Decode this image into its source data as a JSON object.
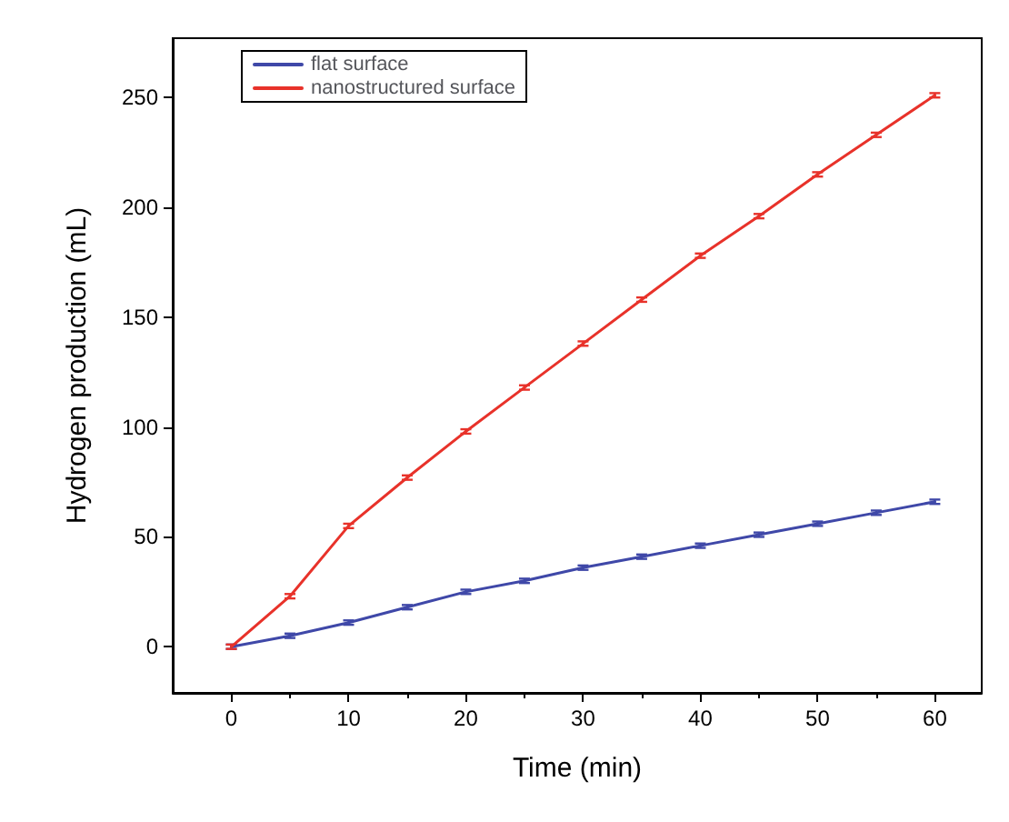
{
  "chart_data": {
    "type": "line",
    "xlabel": "Time (min)",
    "ylabel": "Hydrogen production (mL)",
    "x": [
      0,
      5,
      10,
      15,
      20,
      25,
      30,
      35,
      40,
      45,
      50,
      55,
      60
    ],
    "series": [
      {
        "name": "flat surface",
        "color": "#3f48a8",
        "values": [
          0,
          5,
          11,
          18,
          25,
          30,
          36,
          41,
          46,
          51,
          56,
          61,
          66
        ],
        "errors": [
          1,
          1,
          1,
          1,
          1,
          1,
          1,
          1,
          1,
          1,
          1,
          1,
          1
        ]
      },
      {
        "name": "nanostructured surface",
        "color": "#e8322a",
        "values": [
          0,
          23,
          55,
          77,
          98,
          118,
          138,
          158,
          178,
          196,
          215,
          233,
          251
        ],
        "errors": [
          1,
          1,
          1,
          1,
          1,
          1,
          1,
          1,
          1,
          1,
          1,
          1,
          1
        ]
      }
    ],
    "xlim": [
      -5,
      64
    ],
    "xticks": [
      0,
      10,
      20,
      30,
      40,
      50,
      60
    ],
    "ylim": [
      -21,
      277
    ],
    "yticks": [
      0,
      50,
      100,
      150,
      200,
      250
    ],
    "legend": "top left",
    "grid": false,
    "marker": "none",
    "line_style": "solid"
  }
}
